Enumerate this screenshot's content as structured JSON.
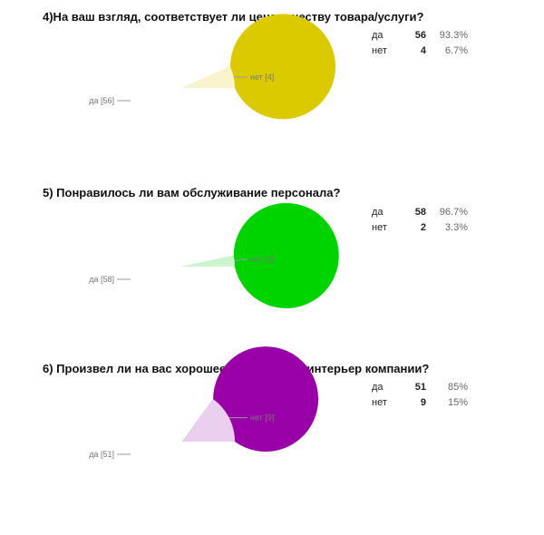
{
  "questions": [
    {
      "title": "4)На ваш взгляд, соответствует ли цена качеству товара/услуги?",
      "rows": [
        {
          "label": "да",
          "count": "56",
          "percent": "93.3%"
        },
        {
          "label": "нет",
          "count": "4",
          "percent": "6.7%"
        }
      ],
      "pie_labels": {
        "main": "да [56]",
        "small": "нет [4]"
      }
    },
    {
      "title": "5) Понравилось ли вам обслуживание персонала?",
      "rows": [
        {
          "label": "да",
          "count": "58",
          "percent": "96.7%"
        },
        {
          "label": "нет",
          "count": "2",
          "percent": "3.3%"
        }
      ],
      "pie_labels": {
        "main": "да [58]",
        "small": "нет [2]"
      }
    },
    {
      "title": "6) Произвел ли на вас хорошее впечатление интерьер компании?",
      "rows": [
        {
          "label": "да",
          "count": "51",
          "percent": "85%"
        },
        {
          "label": "нет",
          "count": "9",
          "percent": "15%"
        }
      ],
      "pie_labels": {
        "main": "да [51]",
        "small": "нет [9]"
      }
    }
  ],
  "chart_data": [
    {
      "type": "pie",
      "title": "4)На ваш взгляд, соответствует ли цена качеству товара/услуги?",
      "categories": [
        "да",
        "нет"
      ],
      "values": [
        56,
        4
      ],
      "colors": [
        "#dcca00",
        "#f8f3cc"
      ]
    },
    {
      "type": "pie",
      "title": "5) Понравилось ли вам обслуживание персонала?",
      "categories": [
        "да",
        "нет"
      ],
      "values": [
        58,
        2
      ],
      "colors": [
        "#00d400",
        "#cdf5cd"
      ]
    },
    {
      "type": "pie",
      "title": "6) Произвел ли на вас хорошее впечатление интерьер компании?",
      "categories": [
        "да",
        "нет"
      ],
      "values": [
        51,
        9
      ],
      "colors": [
        "#9a00a8",
        "#ebcfee"
      ]
    }
  ]
}
